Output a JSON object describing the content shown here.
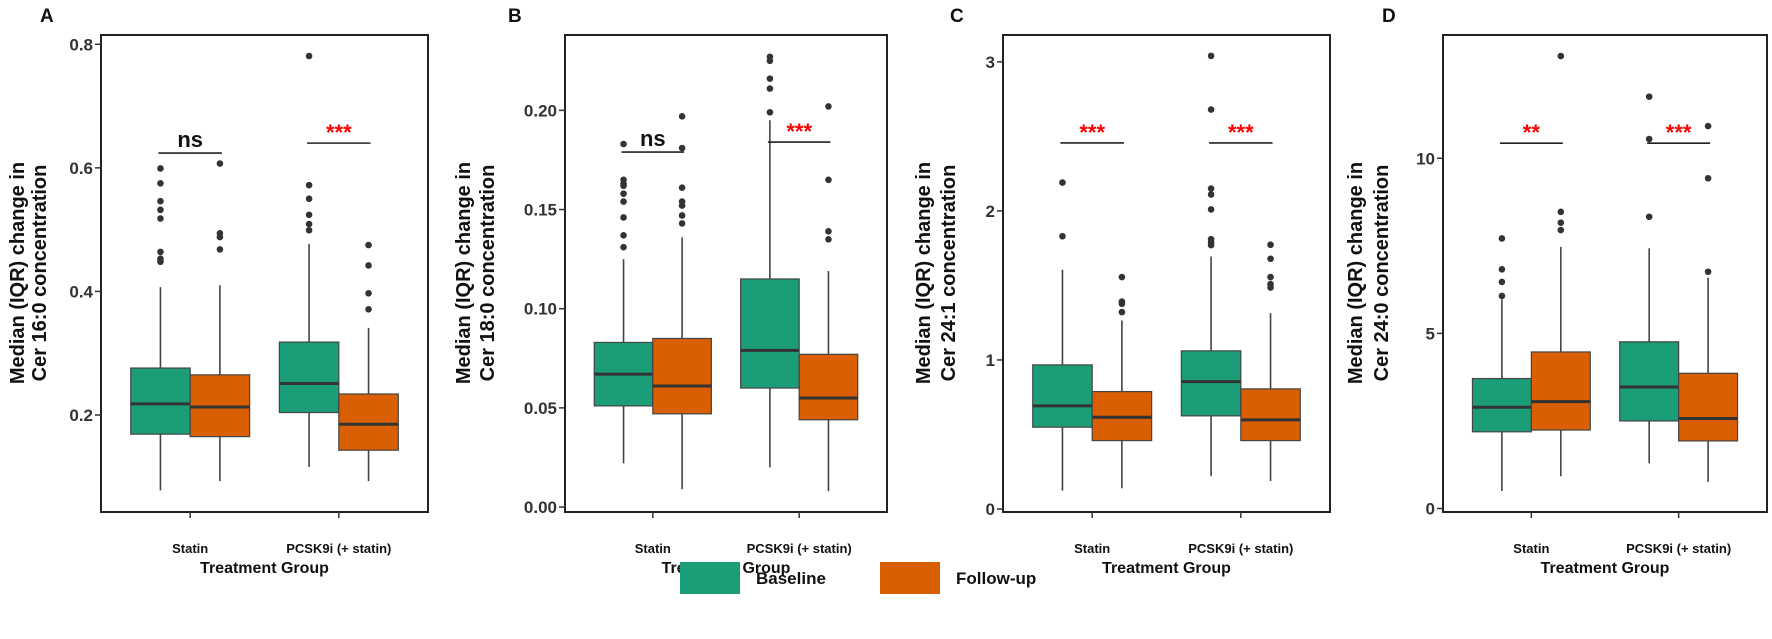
{
  "legend": {
    "placement": "bottom",
    "items": [
      {
        "label": "Baseline",
        "color": "#1b9e77"
      },
      {
        "label": "Follow-up",
        "color": "#d95f02"
      }
    ]
  },
  "colors": {
    "outlier": "#333333",
    "significant": "#ff0000",
    "nonsignificant": "#111111"
  },
  "chart_data": [
    {
      "type": "box",
      "panel_label": "A",
      "ylabel": [
        "Median (IQR) change in",
        "Cer 16:0 concentration"
      ],
      "xlabel": "Treatment Group",
      "categories": [
        "Statin",
        "PCSK9i (+ statin)"
      ],
      "ylim": [
        0.043,
        0.815
      ],
      "yticks": [
        0.2,
        0.4,
        0.6,
        0.8
      ],
      "ytick_labels": [
        "0.2",
        "0.4",
        "0.6",
        "0.8"
      ],
      "series": [
        {
          "name": "Baseline",
          "boxes": [
            {
              "min": 0.078,
              "q1": 0.169,
              "median": 0.218,
              "q3": 0.276,
              "max": 0.407,
              "outliers": [
                0.599,
                0.575,
                0.546,
                0.532,
                0.518,
                0.464,
                0.453,
                0.448
              ]
            },
            {
              "min": 0.116,
              "q1": 0.204,
              "median": 0.251,
              "q3": 0.318,
              "max": 0.477,
              "outliers": [
                0.781,
                0.572,
                0.55,
                0.524,
                0.509,
                0.499
              ]
            }
          ]
        },
        {
          "name": "Follow-up",
          "boxes": [
            {
              "min": 0.093,
              "q1": 0.165,
              "median": 0.213,
              "q3": 0.265,
              "max": 0.41,
              "outliers": [
                0.607,
                0.494,
                0.488,
                0.468
              ]
            },
            {
              "min": 0.093,
              "q1": 0.143,
              "median": 0.185,
              "q3": 0.234,
              "max": 0.341,
              "outliers": [
                0.475,
                0.442,
                0.397,
                0.371
              ]
            }
          ]
        }
      ],
      "significance": [
        {
          "category": "Statin",
          "label": "ns",
          "y": 0.624,
          "significant": false
        },
        {
          "category": "PCSK9i (+ statin)",
          "label": "***",
          "y": 0.64,
          "significant": true
        }
      ]
    },
    {
      "type": "box",
      "panel_label": "B",
      "ylabel": [
        "Median (IQR) change in",
        "Cer 18:0 concentration"
      ],
      "xlabel": "Treatment Group",
      "categories": [
        "Statin",
        "PCSK9i (+ statin)"
      ],
      "ylim": [
        -0.0025,
        0.238
      ],
      "yticks": [
        0,
        0.05,
        0.1,
        0.15,
        0.2
      ],
      "ytick_labels": [
        "0.00",
        "0.05",
        "0.10",
        "0.15",
        "0.20"
      ],
      "series": [
        {
          "name": "Baseline",
          "boxes": [
            {
              "min": 0.022,
              "q1": 0.051,
              "median": 0.067,
              "q3": 0.083,
              "max": 0.125,
              "outliers": [
                0.183,
                0.165,
                0.163,
                0.162,
                0.158,
                0.154,
                0.146,
                0.137,
                0.131
              ]
            },
            {
              "min": 0.02,
              "q1": 0.06,
              "median": 0.079,
              "q3": 0.115,
              "max": 0.195,
              "outliers": [
                0.227,
                0.225,
                0.216,
                0.211,
                0.199
              ]
            }
          ]
        },
        {
          "name": "Follow-up",
          "boxes": [
            {
              "min": 0.009,
              "q1": 0.047,
              "median": 0.061,
              "q3": 0.085,
              "max": 0.136,
              "outliers": [
                0.197,
                0.181,
                0.161,
                0.154,
                0.152,
                0.147,
                0.143
              ]
            },
            {
              "min": 0.008,
              "q1": 0.044,
              "median": 0.055,
              "q3": 0.077,
              "max": 0.119,
              "outliers": [
                0.202,
                0.165,
                0.139,
                0.135
              ]
            }
          ]
        }
      ],
      "significance": [
        {
          "category": "Statin",
          "label": "ns",
          "y": 0.179,
          "significant": false
        },
        {
          "category": "PCSK9i (+ statin)",
          "label": "***",
          "y": 0.184,
          "significant": true
        }
      ]
    },
    {
      "type": "box",
      "panel_label": "C",
      "ylabel": [
        "Median (IQR) change in",
        "Cer 24:1 concentration"
      ],
      "xlabel": "Treatment Group",
      "categories": [
        "Statin",
        "PCSK9i (+ statin)"
      ],
      "ylim": [
        -0.02,
        3.18
      ],
      "yticks": [
        0,
        1,
        2,
        3
      ],
      "ytick_labels": [
        "0",
        "1",
        "2",
        "3"
      ],
      "series": [
        {
          "name": "Baseline",
          "boxes": [
            {
              "min": 0.123,
              "q1": 0.549,
              "median": 0.692,
              "q3": 0.967,
              "max": 1.605,
              "outliers": [
                2.19,
                1.83
              ]
            },
            {
              "min": 0.222,
              "q1": 0.625,
              "median": 0.855,
              "q3": 1.061,
              "max": 1.694,
              "outliers": [
                3.04,
                2.68,
                2.15,
                2.11,
                2.01,
                1.81,
                1.79,
                1.77
              ]
            }
          ]
        },
        {
          "name": "Follow-up",
          "boxes": [
            {
              "min": 0.139,
              "q1": 0.459,
              "median": 0.616,
              "q3": 0.788,
              "max": 1.265,
              "outliers": [
                1.556,
                1.392,
                1.377,
                1.321
              ]
            },
            {
              "min": 0.188,
              "q1": 0.459,
              "median": 0.598,
              "q3": 0.806,
              "max": 1.314,
              "outliers": [
                1.773,
                1.679,
                1.556,
                1.509,
                1.486
              ]
            }
          ]
        }
      ],
      "significance": [
        {
          "category": "Statin",
          "label": "***",
          "y": 2.456,
          "significant": true
        },
        {
          "category": "PCSK9i (+ statin)",
          "label": "***",
          "y": 2.456,
          "significant": true
        }
      ]
    },
    {
      "type": "box",
      "panel_label": "D",
      "ylabel": [
        "Median (IQR) change in",
        "Cer 24:0 concentration"
      ],
      "xlabel": "Treatment Group",
      "categories": [
        "Statin",
        "PCSK9i (+ statin)"
      ],
      "ylim": [
        -0.1,
        13.52
      ],
      "yticks": [
        0,
        5,
        10
      ],
      "ytick_labels": [
        "0",
        "5",
        "10"
      ],
      "series": [
        {
          "name": "Baseline",
          "boxes": [
            {
              "min": 0.5,
              "q1": 2.19,
              "median": 2.89,
              "q3": 3.71,
              "max": 5.97,
              "outliers": [
                7.71,
                6.83,
                6.47,
                6.07
              ]
            },
            {
              "min": 1.29,
              "q1": 2.5,
              "median": 3.47,
              "q3": 4.76,
              "max": 7.43,
              "outliers": [
                11.76,
                10.55,
                8.33
              ]
            }
          ]
        },
        {
          "name": "Follow-up",
          "boxes": [
            {
              "min": 0.92,
              "q1": 2.24,
              "median": 3.05,
              "q3": 4.47,
              "max": 7.47,
              "outliers": [
                12.92,
                8.47,
                8.16,
                7.95
              ]
            },
            {
              "min": 0.76,
              "q1": 1.93,
              "median": 2.57,
              "q3": 3.86,
              "max": 6.59,
              "outliers": [
                10.92,
                9.43,
                6.76
              ]
            }
          ]
        }
      ],
      "significance": [
        {
          "category": "Statin",
          "label": "**",
          "y": 10.43,
          "significant": true
        },
        {
          "category": "PCSK9i (+ statin)",
          "label": "***",
          "y": 10.43,
          "significant": true
        }
      ]
    }
  ]
}
